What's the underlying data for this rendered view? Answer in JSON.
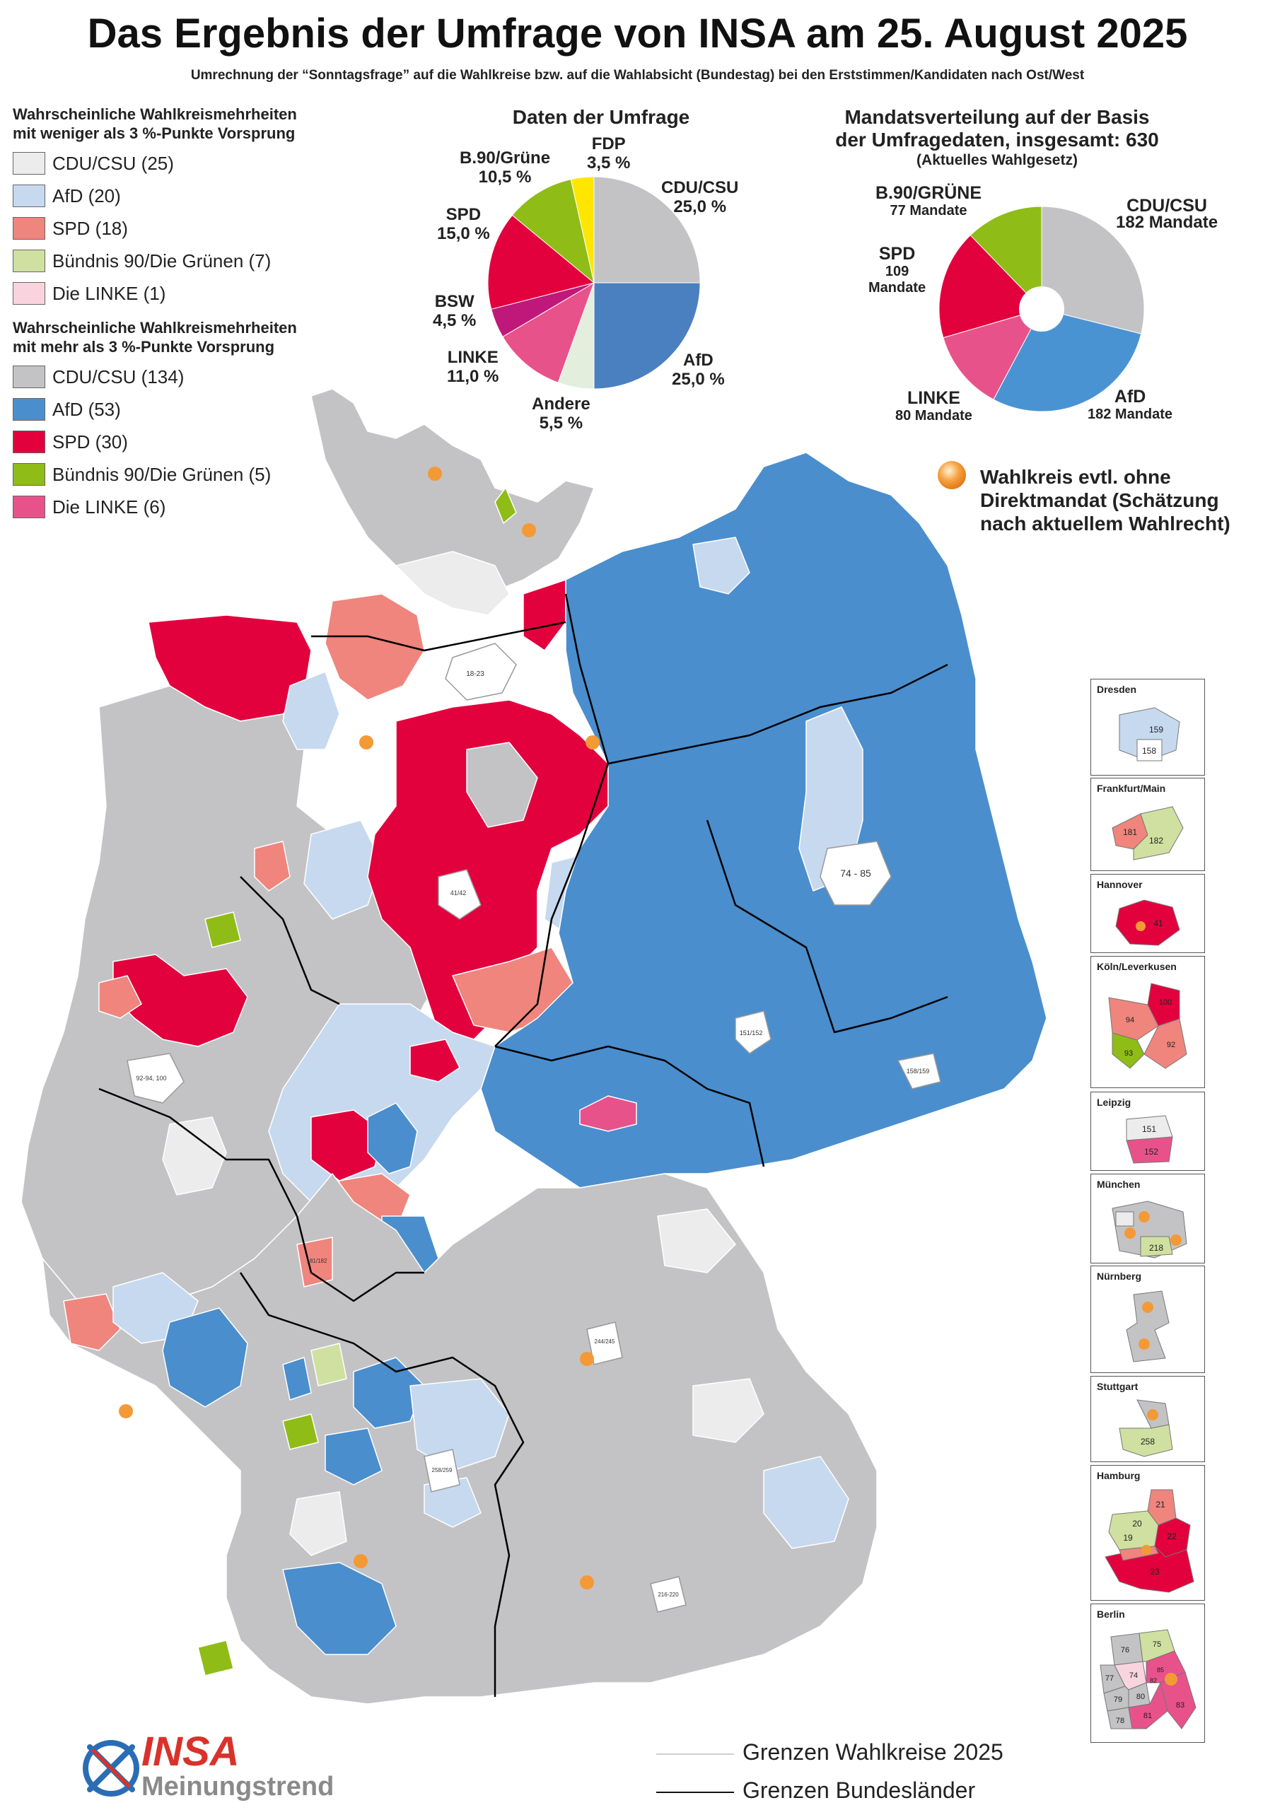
{
  "header": {
    "title": "Das Ergebnis der Umfrage von INSA am 25. August 2025",
    "subtitle": "Umrechnung der “Sonntagsfrage” auf die Wahlkreise bzw. auf die Wahlabsicht (Bundestag) bei den Erststimmen/Kandidaten nach Ost/West"
  },
  "legend_low": {
    "heading_1": "Wahrscheinliche Wahlkreismehrheiten",
    "heading_2": "mit weniger als 3 %-Punkte Vorsprung",
    "items": [
      {
        "label": "CDU/CSU (25)",
        "color": "#ececec"
      },
      {
        "label": "AfD (20)",
        "color": "#c7d9ef"
      },
      {
        "label": "SPD (18)",
        "color": "#ef857d"
      },
      {
        "label": "Bündnis 90/Die Grünen (7)",
        "color": "#cfe0a0"
      },
      {
        "label": "Die LINKE (1)",
        "color": "#f9d4de"
      }
    ]
  },
  "legend_high": {
    "heading_1": "Wahrscheinliche Wahlkreismehrheiten",
    "heading_2": "mit mehr als 3 %-Punkte Vorsprung",
    "items": [
      {
        "label": "CDU/CSU (134)",
        "color": "#c3c3c5"
      },
      {
        "label": "AfD (53)",
        "color": "#4a8ecd"
      },
      {
        "label": "SPD (30)",
        "color": "#e2003d"
      },
      {
        "label": "Bündnis 90/Die Grünen (5)",
        "color": "#8fbc16"
      },
      {
        "label": "Die LINKE (6)",
        "color": "#e8528a"
      }
    ]
  },
  "poll": {
    "title": "Daten der Umfrage",
    "slices": [
      {
        "party": "CDU/CSU",
        "value": "25,0 %",
        "share": 25.0,
        "color": "#c3c3c5"
      },
      {
        "party": "AfD",
        "value": "25,0 %",
        "share": 25.0,
        "color": "#4a80c0"
      },
      {
        "party": "Andere",
        "value": "5,5 %",
        "share": 5.5,
        "color": "#e3eedd"
      },
      {
        "party": "LINKE",
        "value": "11,0 %",
        "share": 11.0,
        "color": "#e8528a"
      },
      {
        "party": "BSW",
        "value": "4,5 %",
        "share": 4.5,
        "color": "#c0187a"
      },
      {
        "party": "SPD",
        "value": "15,0 %",
        "share": 15.0,
        "color": "#e2003d"
      },
      {
        "party": "B.90/Grüne",
        "value": "10,5 %",
        "share": 10.5,
        "color": "#8fbc16"
      },
      {
        "party": "FDP",
        "value": "3,5 %",
        "share": 3.5,
        "color": "#ffe600"
      }
    ]
  },
  "seats": {
    "title_1": "Mandatsverteilung auf der Basis",
    "title_2": "der Umfragedaten, insgesamt: 630",
    "title_3": "(Aktuelles Wahlgesetz)",
    "slices": [
      {
        "party": "CDU/CSU",
        "value": "182 Mandate",
        "seats": 182,
        "color": "#c3c3c5"
      },
      {
        "party": "AfD",
        "value": "182 Mandate",
        "seats": 182,
        "color": "#4a93d3"
      },
      {
        "party": "LINKE",
        "value": "80 Mandate",
        "seats": 80,
        "color": "#e8528a"
      },
      {
        "party": "SPD",
        "value_1": "109",
        "value_2": "Mandate",
        "seats": 109,
        "color": "#e2003d"
      },
      {
        "party": "B.90/GRÜNE",
        "value": "77 Mandate",
        "seats": 77,
        "color": "#8fbc16"
      }
    ]
  },
  "marker_legend": {
    "line_1": "Wahlkreis evtl. ohne",
    "line_2": "Direktmandat (Schätzung",
    "line_3": "nach aktuellem Wahlrecht)"
  },
  "map_labels": {
    "hamburg": "18-23",
    "berlin": "74 - 85",
    "leipzig": "151/152",
    "dresden": "158/159",
    "koeln": "92-94, 100",
    "hannover": "41/42",
    "frankfurt": "181/182",
    "stuttgart": "258/259",
    "muenchen": "216-220",
    "nuernberg": "244/245"
  },
  "insets": [
    {
      "name": "Dresden",
      "labels": [
        "159",
        "158"
      ]
    },
    {
      "name": "Frankfurt/Main",
      "labels": [
        "181",
        "182"
      ]
    },
    {
      "name": "Hannover",
      "labels": [
        "41"
      ]
    },
    {
      "name": "Köln/Leverkusen",
      "labels": [
        "100",
        "94",
        "92",
        "93"
      ]
    },
    {
      "name": "Leipzig",
      "labels": [
        "151",
        "152"
      ]
    },
    {
      "name": "München",
      "labels": [
        "218"
      ]
    },
    {
      "name": "Nürnberg",
      "labels": []
    },
    {
      "name": "Stuttgart",
      "labels": [
        "258"
      ]
    },
    {
      "name": "Hamburg",
      "labels": [
        "21",
        "20",
        "22",
        "19",
        "23"
      ]
    },
    {
      "name": "Berlin",
      "labels": [
        "76",
        "75",
        "77",
        "74",
        "82",
        "85",
        "79",
        "80",
        "78",
        "81",
        "83"
      ]
    }
  ],
  "logo": {
    "brand": "INSA",
    "sub": "Meinungstrend"
  },
  "boundaries": {
    "constituencies": "Grenzen Wahlkreise 2025",
    "states": "Grenzen Bundesländer"
  }
}
